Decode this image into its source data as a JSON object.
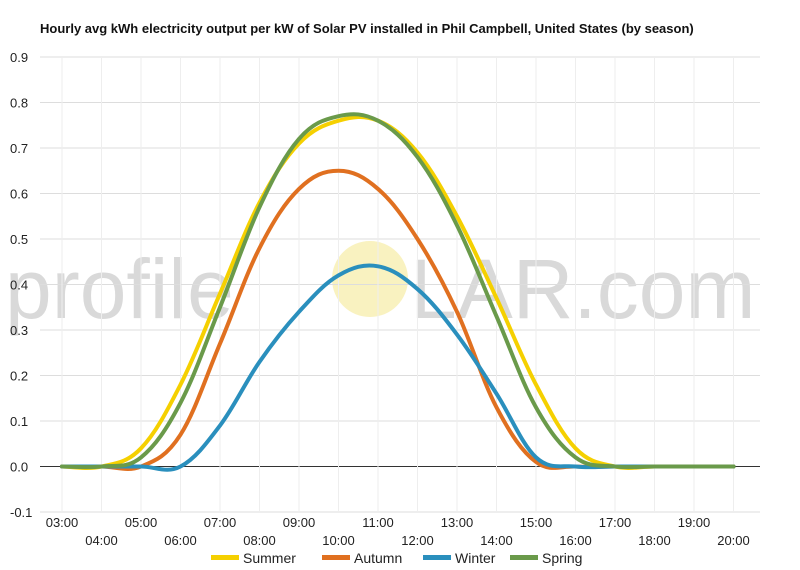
{
  "chart_data": {
    "type": "line",
    "title": "Hourly avg kWh electricity output per kW of Solar PV installed in Phil Campbell, United States (by season)",
    "xlabel": "",
    "ylabel": "",
    "x": [
      "03:00",
      "04:00",
      "05:00",
      "06:00",
      "07:00",
      "08:00",
      "09:00",
      "10:00",
      "11:00",
      "12:00",
      "13:00",
      "14:00",
      "15:00",
      "16:00",
      "17:00",
      "18:00",
      "19:00",
      "20:00"
    ],
    "ylim": [
      -0.1,
      0.9
    ],
    "yticks": [
      "-0.1",
      "0.0",
      "0.1",
      "0.2",
      "0.3",
      "0.4",
      "0.5",
      "0.6",
      "0.7",
      "0.8",
      "0.9"
    ],
    "grid": true,
    "legend_position": "bottom",
    "series": [
      {
        "name": "Summer",
        "color": "#f5d000",
        "values": [
          0.0,
          0.0,
          0.04,
          0.18,
          0.38,
          0.58,
          0.71,
          0.76,
          0.76,
          0.69,
          0.55,
          0.37,
          0.18,
          0.04,
          0.0,
          0.0,
          0.0,
          0.0
        ]
      },
      {
        "name": "Autumn",
        "color": "#e07020",
        "values": [
          0.0,
          0.0,
          0.0,
          0.07,
          0.27,
          0.48,
          0.61,
          0.65,
          0.61,
          0.5,
          0.34,
          0.13,
          0.01,
          0.0,
          0.0,
          0.0,
          0.0,
          0.0
        ]
      },
      {
        "name": "Winter",
        "color": "#2a8fbd",
        "values": [
          0.0,
          0.0,
          0.0,
          0.0,
          0.09,
          0.23,
          0.34,
          0.42,
          0.44,
          0.39,
          0.29,
          0.16,
          0.02,
          0.0,
          0.0,
          0.0,
          0.0,
          0.0
        ]
      },
      {
        "name": "Spring",
        "color": "#6a9a4a",
        "values": [
          0.0,
          0.0,
          0.02,
          0.14,
          0.35,
          0.57,
          0.72,
          0.77,
          0.76,
          0.68,
          0.53,
          0.33,
          0.13,
          0.02,
          0.0,
          0.0,
          0.0,
          0.0
        ]
      }
    ]
  },
  "watermark": {
    "left": "profile",
    "right": "LAR.com"
  }
}
